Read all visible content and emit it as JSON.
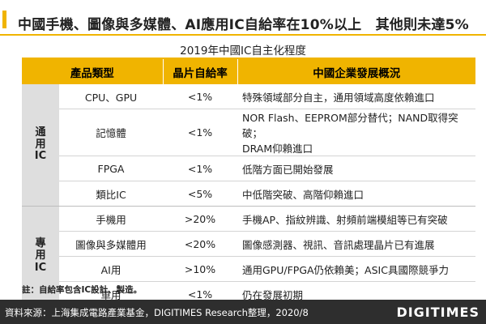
{
  "header": {
    "title": "中國手機、圖像與多媒體、AI應用IC自給率在10%以上　其他則未達5%"
  },
  "subtitle": "2019年中國IC自主化程度",
  "table": {
    "columns": [
      "產品類型",
      "晶片自給率",
      "中國企業發展概況"
    ],
    "groups": [
      {
        "label_chars": [
          "通",
          "用",
          "IC"
        ],
        "rows": [
          {
            "product": "CPU、GPU",
            "rate": "<1%",
            "desc": "特殊領域部分自主，通用領域高度依賴進口"
          },
          {
            "product": "記憶體",
            "rate": "<1%",
            "desc_lines": [
              "NOR Flash、EEPROM部分替代；NAND取得突破；",
              "DRAM仰賴進口"
            ]
          },
          {
            "product": "FPGA",
            "rate": "<1%",
            "desc": "低階方面已開始發展"
          },
          {
            "product": "類比IC",
            "rate": "<5%",
            "desc": "中低階突破、高階仰賴進口"
          }
        ]
      },
      {
        "label_chars": [
          "專",
          "用",
          "IC"
        ],
        "rows": [
          {
            "product": "手機用",
            "rate": ">20%",
            "desc": "手機AP、指紋辨識、射頻前端模組等已有突破"
          },
          {
            "product": "圖像與多媒體用",
            "rate": "<20%",
            "desc": "圖像感測器、視訊、音訊處理晶片已有進展"
          },
          {
            "product": "AI用",
            "rate": ">10%",
            "desc": "通用GPU/FPGA仍依賴美；ASIC具國際競爭力"
          },
          {
            "product": "車用",
            "rate": "<1%",
            "desc": "仍在發展初期"
          }
        ]
      }
    ]
  },
  "note": "註：自給率包含IC設計、製造。",
  "footer": {
    "source": "資料來源：上海集成電路產業基金，DIGITIMES Research整理，2020/8",
    "logo": "DIGITIMES"
  },
  "colors": {
    "accent": "#f0b400",
    "group_bg": "#dedede",
    "footer_bg": "#2e2e2e"
  }
}
